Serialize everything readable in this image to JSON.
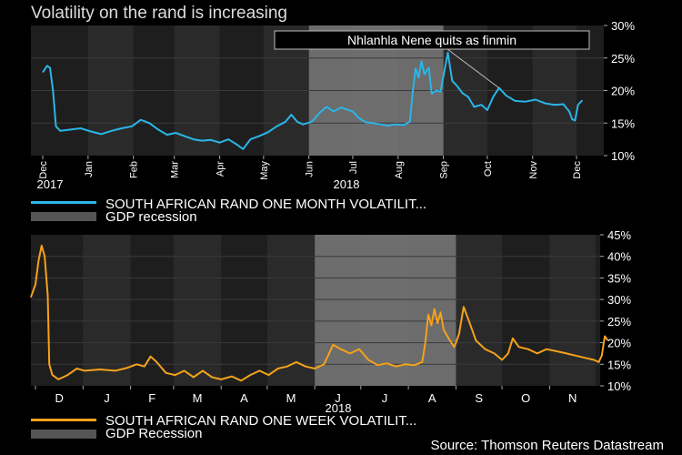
{
  "title": "Volatility on the rand is increasing",
  "source": "Source: Thomson Reuters Datastream",
  "colors": {
    "background": "#000000",
    "plot_bg": "#1e1e1e",
    "band_alt": "#2a2a2a",
    "recession": "#7a7a7a",
    "monthly_line": "#29b6e8",
    "weekly_line": "#f5a21b"
  },
  "chart_data": [
    {
      "type": "line",
      "x_axis": "date",
      "months": [
        "Dec",
        "Jan",
        "Feb",
        "Mar",
        "Apr",
        "May",
        "Jun",
        "Jul",
        "Aug",
        "Sep",
        "Oct",
        "Nov",
        "Dec"
      ],
      "year_labels": [
        "2017",
        "2018"
      ],
      "y_ticks": [
        "10%",
        "15%",
        "20%",
        "25%",
        "30%"
      ],
      "ylim": [
        10,
        30
      ],
      "recession_band": {
        "start": "2018-06-01",
        "end": "2018-09-01"
      },
      "annotation": {
        "text": "Nhlanhla Nene quits as finmin",
        "points_to": "2018-10-09"
      },
      "legend": [
        {
          "label": "SOUTH AFRICAN RAND ONE MONTH VOLATILIT...",
          "kind": "line",
          "color": "#29b6e8"
        },
        {
          "label": "GDP recession",
          "kind": "band",
          "color": "#555555"
        }
      ],
      "series": [
        {
          "name": "SOUTH AFRICAN RAND ONE MONTH VOLATILIT...",
          "color": "#29b6e8",
          "points": [
            [
              "2017-12-01",
              22.8
            ],
            [
              "2017-12-04",
              23.8
            ],
            [
              "2017-12-06",
              23.5
            ],
            [
              "2017-12-08",
              20.0
            ],
            [
              "2017-12-10",
              14.5
            ],
            [
              "2017-12-13",
              13.8
            ],
            [
              "2017-12-20",
              14.0
            ],
            [
              "2017-12-27",
              14.2
            ],
            [
              "2018-01-03",
              13.7
            ],
            [
              "2018-01-10",
              13.3
            ],
            [
              "2018-01-17",
              13.8
            ],
            [
              "2018-01-24",
              14.2
            ],
            [
              "2018-01-31",
              14.5
            ],
            [
              "2018-02-06",
              15.5
            ],
            [
              "2018-02-12",
              15.0
            ],
            [
              "2018-02-18",
              14.0
            ],
            [
              "2018-02-24",
              13.2
            ],
            [
              "2018-03-02",
              13.5
            ],
            [
              "2018-03-08",
              13.0
            ],
            [
              "2018-03-14",
              12.5
            ],
            [
              "2018-03-20",
              12.3
            ],
            [
              "2018-03-26",
              12.4
            ],
            [
              "2018-04-01",
              12.0
            ],
            [
              "2018-04-07",
              12.5
            ],
            [
              "2018-04-12",
              11.8
            ],
            [
              "2018-04-17",
              11.0
            ],
            [
              "2018-04-22",
              12.5
            ],
            [
              "2018-04-28",
              13.0
            ],
            [
              "2018-05-04",
              13.6
            ],
            [
              "2018-05-10",
              14.5
            ],
            [
              "2018-05-16",
              15.2
            ],
            [
              "2018-05-20",
              16.3
            ],
            [
              "2018-05-24",
              15.2
            ],
            [
              "2018-05-28",
              14.8
            ],
            [
              "2018-06-03",
              15.2
            ],
            [
              "2018-06-08",
              16.5
            ],
            [
              "2018-06-13",
              17.5
            ],
            [
              "2018-06-18",
              16.8
            ],
            [
              "2018-06-23",
              17.4
            ],
            [
              "2018-06-28",
              17.0
            ],
            [
              "2018-07-01",
              16.8
            ],
            [
              "2018-07-05",
              15.8
            ],
            [
              "2018-07-10",
              15.1
            ],
            [
              "2018-07-15",
              15.0
            ],
            [
              "2018-07-20",
              14.8
            ],
            [
              "2018-07-25",
              14.6
            ],
            [
              "2018-07-30",
              14.8
            ],
            [
              "2018-08-05",
              14.7
            ],
            [
              "2018-08-09",
              15.2
            ],
            [
              "2018-08-11",
              19.8
            ],
            [
              "2018-08-13",
              23.4
            ],
            [
              "2018-08-15",
              22.0
            ],
            [
              "2018-08-17",
              24.5
            ],
            [
              "2018-08-19",
              22.5
            ],
            [
              "2018-08-22",
              23.5
            ],
            [
              "2018-08-24",
              19.5
            ],
            [
              "2018-08-27",
              20.0
            ],
            [
              "2018-08-30",
              19.8
            ],
            [
              "2018-09-04",
              25.8
            ],
            [
              "2018-09-07",
              21.5
            ],
            [
              "2018-09-10",
              20.8
            ],
            [
              "2018-09-14",
              19.6
            ],
            [
              "2018-09-18",
              19.0
            ],
            [
              "2018-09-22",
              17.5
            ],
            [
              "2018-09-27",
              17.8
            ],
            [
              "2018-10-01",
              17.0
            ],
            [
              "2018-10-05",
              19.0
            ],
            [
              "2018-10-09",
              20.4
            ],
            [
              "2018-10-14",
              19.2
            ],
            [
              "2018-10-20",
              18.4
            ],
            [
              "2018-10-27",
              18.3
            ],
            [
              "2018-11-03",
              18.6
            ],
            [
              "2018-11-10",
              18.0
            ],
            [
              "2018-11-16",
              17.8
            ],
            [
              "2018-11-22",
              17.9
            ],
            [
              "2018-11-26",
              16.8
            ],
            [
              "2018-11-28",
              15.6
            ],
            [
              "2018-11-30",
              15.4
            ],
            [
              "2018-12-02",
              17.8
            ],
            [
              "2018-12-05",
              18.5
            ]
          ]
        }
      ]
    },
    {
      "type": "line",
      "x_axis": "date",
      "months": [
        "D",
        "J",
        "F",
        "M",
        "A",
        "M",
        "J",
        "J",
        "A",
        "S",
        "O",
        "N"
      ],
      "year_labels": [
        "2018"
      ],
      "y_ticks": [
        "10%",
        "15%",
        "20%",
        "25%",
        "30%",
        "35%",
        "40%",
        "45%"
      ],
      "ylim": [
        10,
        45
      ],
      "recession_band": {
        "start": "2018-06-01",
        "end": "2018-09-01"
      },
      "legend": [
        {
          "label": "SOUTH AFRICAN RAND ONE WEEK VOLATILIT...",
          "kind": "line",
          "color": "#f5a21b"
        },
        {
          "label": "GDP Recession",
          "kind": "band",
          "color": "#555555"
        }
      ],
      "series": [
        {
          "name": "SOUTH AFRICAN RAND ONE WEEK VOLATILIT...",
          "color": "#f5a21b",
          "points": [
            [
              "2017-11-28",
              30.5
            ],
            [
              "2017-12-01",
              33.5
            ],
            [
              "2017-12-03",
              39.0
            ],
            [
              "2017-12-05",
              42.5
            ],
            [
              "2017-12-07",
              40.0
            ],
            [
              "2017-12-09",
              31.0
            ],
            [
              "2017-12-10",
              15.0
            ],
            [
              "2017-12-12",
              12.5
            ],
            [
              "2017-12-16",
              11.5
            ],
            [
              "2017-12-22",
              12.5
            ],
            [
              "2017-12-28",
              14.0
            ],
            [
              "2018-01-02",
              13.5
            ],
            [
              "2018-01-12",
              13.8
            ],
            [
              "2018-01-22",
              13.5
            ],
            [
              "2018-01-30",
              14.2
            ],
            [
              "2018-02-05",
              15.0
            ],
            [
              "2018-02-10",
              14.5
            ],
            [
              "2018-02-14",
              16.8
            ],
            [
              "2018-02-18",
              15.5
            ],
            [
              "2018-02-24",
              13.0
            ],
            [
              "2018-03-02",
              12.5
            ],
            [
              "2018-03-08",
              13.5
            ],
            [
              "2018-03-14",
              12.0
            ],
            [
              "2018-03-20",
              13.5
            ],
            [
              "2018-03-26",
              12.0
            ],
            [
              "2018-04-01",
              11.5
            ],
            [
              "2018-04-08",
              12.2
            ],
            [
              "2018-04-14",
              11.2
            ],
            [
              "2018-04-20",
              12.5
            ],
            [
              "2018-04-26",
              13.5
            ],
            [
              "2018-05-02",
              12.5
            ],
            [
              "2018-05-08",
              14.0
            ],
            [
              "2018-05-14",
              14.5
            ],
            [
              "2018-05-20",
              15.5
            ],
            [
              "2018-05-26",
              14.5
            ],
            [
              "2018-06-01",
              14.0
            ],
            [
              "2018-06-07",
              15.0
            ],
            [
              "2018-06-13",
              19.5
            ],
            [
              "2018-06-18",
              18.5
            ],
            [
              "2018-06-24",
              17.5
            ],
            [
              "2018-06-30",
              18.5
            ],
            [
              "2018-07-06",
              16.0
            ],
            [
              "2018-07-12",
              14.8
            ],
            [
              "2018-07-18",
              15.2
            ],
            [
              "2018-07-24",
              14.5
            ],
            [
              "2018-07-30",
              15.0
            ],
            [
              "2018-08-05",
              14.8
            ],
            [
              "2018-08-10",
              15.5
            ],
            [
              "2018-08-12",
              20.0
            ],
            [
              "2018-08-14",
              26.5
            ],
            [
              "2018-08-16",
              24.0
            ],
            [
              "2018-08-18",
              27.8
            ],
            [
              "2018-08-20",
              24.5
            ],
            [
              "2018-08-22",
              27.0
            ],
            [
              "2018-08-24",
              23.0
            ],
            [
              "2018-08-28",
              20.5
            ],
            [
              "2018-08-31",
              19.0
            ],
            [
              "2018-09-03",
              22.0
            ],
            [
              "2018-09-06",
              28.3
            ],
            [
              "2018-09-10",
              24.5
            ],
            [
              "2018-09-14",
              20.5
            ],
            [
              "2018-09-20",
              18.5
            ],
            [
              "2018-09-26",
              17.5
            ],
            [
              "2018-10-01",
              16.0
            ],
            [
              "2018-10-05",
              17.5
            ],
            [
              "2018-10-08",
              21.0
            ],
            [
              "2018-10-12",
              19.0
            ],
            [
              "2018-10-18",
              18.5
            ],
            [
              "2018-10-24",
              17.5
            ],
            [
              "2018-10-30",
              18.5
            ],
            [
              "2018-11-06",
              18.0
            ],
            [
              "2018-11-12",
              17.5
            ],
            [
              "2018-11-18",
              17.0
            ],
            [
              "2018-11-24",
              16.5
            ],
            [
              "2018-11-30",
              16.0
            ],
            [
              "2018-12-03",
              15.5
            ],
            [
              "2018-12-05",
              17.0
            ],
            [
              "2018-12-07",
              21.5
            ],
            [
              "2018-12-09",
              20.5
            ]
          ]
        }
      ]
    }
  ]
}
